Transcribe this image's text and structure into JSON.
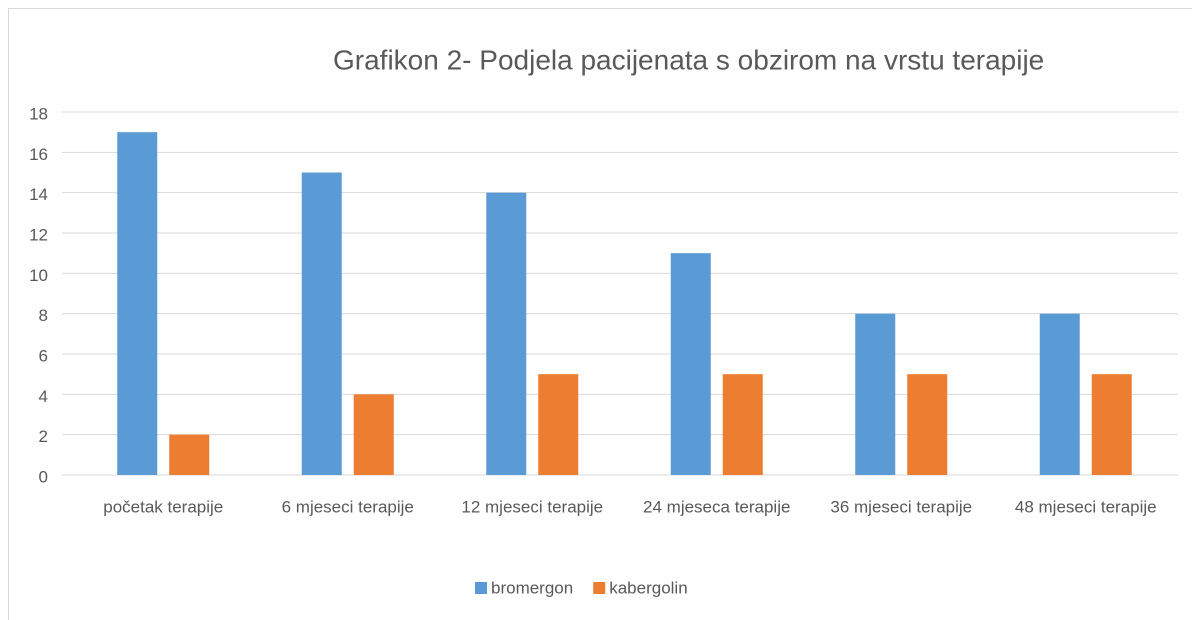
{
  "chart_data": {
    "type": "bar",
    "title": "Grafikon 2- Podjela pacijenata s obzirom na vrstu terapije",
    "categories": [
      "početak terapije",
      "6 mjeseci terapije",
      "12 mjeseci terapije",
      "24 mjeseca terapije",
      "36 mjeseci terapije",
      "48 mjeseci terapije"
    ],
    "series": [
      {
        "name": "bromergon",
        "color": "#5b9bd5",
        "values": [
          17,
          15,
          14,
          11,
          8,
          8
        ]
      },
      {
        "name": "kabergolin",
        "color": "#ed7d31",
        "values": [
          2,
          4,
          5,
          5,
          5,
          5
        ]
      }
    ],
    "ylim": [
      0,
      18
    ],
    "yticks": [
      0,
      2,
      4,
      6,
      8,
      10,
      12,
      14,
      16,
      18
    ],
    "grid": true,
    "legend": "bottom"
  }
}
